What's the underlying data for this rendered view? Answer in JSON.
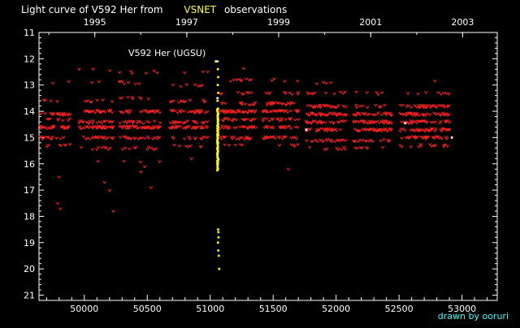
{
  "header": {
    "title_prefix": "Light curve of V592 Her from",
    "title_source": "VSNET",
    "title_suffix": "observations",
    "source_color": "#ffff33"
  },
  "credit": {
    "text": "drawn by ooruri",
    "color": "#33ffff"
  },
  "chart_data": {
    "type": "scatter",
    "title": "Light curve of V592 Her from VSNET observations",
    "panel_label": "V592 Her (UGSU)",
    "x_axis": {
      "ticks": [
        50000,
        50500,
        51000,
        51500,
        52000,
        52500,
        53000
      ],
      "tick_labels": [
        "50000",
        "50500",
        "51000",
        "51500",
        "52000",
        "52500",
        "53000"
      ],
      "range": [
        49640,
        53280
      ]
    },
    "y_axis": {
      "ticks": [
        11,
        12,
        13,
        14,
        15,
        16,
        17,
        18,
        19,
        20,
        21
      ],
      "tick_labels": [
        "11",
        "12",
        "13",
        "14",
        "15",
        "16",
        "17",
        "18",
        "19",
        "20",
        "21"
      ],
      "range": [
        11,
        21.2
      ],
      "inverted": true
    },
    "top_axis": {
      "ticks": [
        50083,
        50814,
        51544,
        52275,
        53005
      ],
      "tick_labels": [
        "1995",
        "1997",
        "1999",
        "2001",
        "2003"
      ]
    },
    "series": [
      {
        "type": "upper-limits (fainter than)",
        "marker": "v",
        "color": "#ff2020",
        "seasons": [
          {
            "start": 49650,
            "end": 49890,
            "dens": [
              [
                12.9,
                0.12
              ],
              [
                13.6,
                0.07
              ],
              [
                14.1,
                0.45
              ],
              [
                14.3,
                0.2
              ],
              [
                14.6,
                0.55
              ],
              [
                15.0,
                0.25
              ],
              [
                15.3,
                0.1
              ]
            ],
            "outliers": [
              [
                49800,
                16.5
              ],
              [
                49790,
                17.5
              ],
              [
                49810,
                17.7
              ]
            ]
          },
          {
            "start": 49960,
            "end": 50230,
            "dens": [
              [
                12.4,
                0.05
              ],
              [
                12.9,
                0.1
              ],
              [
                13.6,
                0.12
              ],
              [
                14.0,
                0.45
              ],
              [
                14.4,
                0.3
              ],
              [
                14.6,
                0.6
              ],
              [
                15.0,
                0.3
              ],
              [
                15.4,
                0.1
              ]
            ],
            "outliers": [
              [
                50160,
                16.7
              ],
              [
                50200,
                17.0
              ],
              [
                50230,
                17.8
              ],
              [
                50110,
                15.9
              ]
            ]
          },
          {
            "start": 50280,
            "end": 50600,
            "dens": [
              [
                12.5,
                0.05
              ],
              [
                12.9,
                0.08
              ],
              [
                13.5,
                0.15
              ],
              [
                14.0,
                0.35
              ],
              [
                14.4,
                0.3
              ],
              [
                14.6,
                0.5
              ],
              [
                15.0,
                0.35
              ],
              [
                15.4,
                0.15
              ],
              [
                15.9,
                0.05
              ]
            ],
            "outliers": [
              [
                50480,
                16.1
              ],
              [
                50530,
                16.9
              ],
              [
                50450,
                16.3
              ]
            ]
          },
          {
            "start": 50680,
            "end": 50980,
            "dens": [
              [
                12.5,
                0.05
              ],
              [
                13.0,
                0.1
              ],
              [
                13.6,
                0.15
              ],
              [
                14.0,
                0.4
              ],
              [
                14.4,
                0.35
              ],
              [
                14.6,
                0.55
              ],
              [
                15.0,
                0.25
              ],
              [
                15.3,
                0.1
              ]
            ],
            "outliers": [
              [
                50850,
                15.8
              ]
            ]
          },
          {
            "start": 51080,
            "end": 51360,
            "dens": [
              [
                12.4,
                0.05
              ],
              [
                12.8,
                0.1
              ],
              [
                13.3,
                0.15
              ],
              [
                13.7,
                0.3
              ],
              [
                14.0,
                0.4
              ],
              [
                14.3,
                0.35
              ],
              [
                14.6,
                0.4
              ],
              [
                15.0,
                0.3
              ],
              [
                15.3,
                0.1
              ]
            ],
            "outliers": []
          },
          {
            "start": 51420,
            "end": 51700,
            "dens": [
              [
                12.8,
                0.08
              ],
              [
                13.3,
                0.2
              ],
              [
                13.7,
                0.35
              ],
              [
                14.0,
                0.45
              ],
              [
                14.3,
                0.3
              ],
              [
                14.6,
                0.4
              ],
              [
                15.0,
                0.3
              ],
              [
                15.3,
                0.1
              ]
            ],
            "outliers": [
              [
                51620,
                16.2
              ]
            ]
          },
          {
            "start": 51760,
            "end": 52080,
            "dens": [
              [
                12.9,
                0.06
              ],
              [
                13.3,
                0.12
              ],
              [
                13.8,
                0.35
              ],
              [
                14.1,
                0.5
              ],
              [
                14.4,
                0.35
              ],
              [
                14.7,
                0.4
              ],
              [
                15.1,
                0.3
              ],
              [
                15.4,
                0.12
              ]
            ],
            "outliers": []
          },
          {
            "start": 52140,
            "end": 52440,
            "dens": [
              [
                13.3,
                0.06
              ],
              [
                13.8,
                0.15
              ],
              [
                14.1,
                0.45
              ],
              [
                14.4,
                0.4
              ],
              [
                14.7,
                0.45
              ],
              [
                15.1,
                0.3
              ],
              [
                15.4,
                0.08
              ]
            ],
            "outliers": []
          },
          {
            "start": 52500,
            "end": 52900,
            "dens": [
              [
                12.8,
                0.04
              ],
              [
                13.3,
                0.1
              ],
              [
                13.8,
                0.25
              ],
              [
                14.1,
                0.55
              ],
              [
                14.4,
                0.35
              ],
              [
                14.7,
                0.4
              ],
              [
                15.0,
                0.3
              ],
              [
                15.3,
                0.12
              ]
            ],
            "outliers": []
          }
        ]
      },
      {
        "type": "outburst detections",
        "marker": "dot",
        "color": "#ffff00",
        "points": [
          [
            51058,
            12.1
          ],
          [
            51061,
            12.4
          ],
          [
            51063,
            12.7
          ],
          [
            51060,
            13.0
          ],
          [
            51063,
            13.3
          ],
          [
            51058,
            13.6
          ],
          [
            51062,
            13.9
          ],
          [
            51063,
            14.1
          ],
          [
            51059,
            14.3
          ],
          [
            51062,
            14.5
          ],
          [
            51061,
            14.7
          ],
          [
            51064,
            14.9
          ],
          [
            51058,
            15.0
          ],
          [
            51063,
            15.2
          ],
          [
            51061,
            15.4
          ],
          [
            51059,
            15.6
          ],
          [
            51063,
            15.8
          ],
          [
            51060,
            16.0
          ],
          [
            51062,
            16.2
          ],
          [
            51063,
            18.5
          ],
          [
            51065,
            18.6
          ],
          [
            51066,
            18.8
          ],
          [
            51062,
            19.0
          ],
          [
            51064,
            19.3
          ],
          [
            51068,
            19.5
          ],
          [
            51071,
            20.0
          ]
        ]
      },
      {
        "type": "quiescent detections",
        "marker": "dot",
        "color": "#ffffff",
        "points": [
          [
            51045,
            12.1
          ],
          [
            51058,
            13.5
          ],
          [
            51764,
            14.7
          ],
          [
            52549,
            14.45
          ],
          [
            52920,
            15.0
          ]
        ]
      }
    ]
  }
}
